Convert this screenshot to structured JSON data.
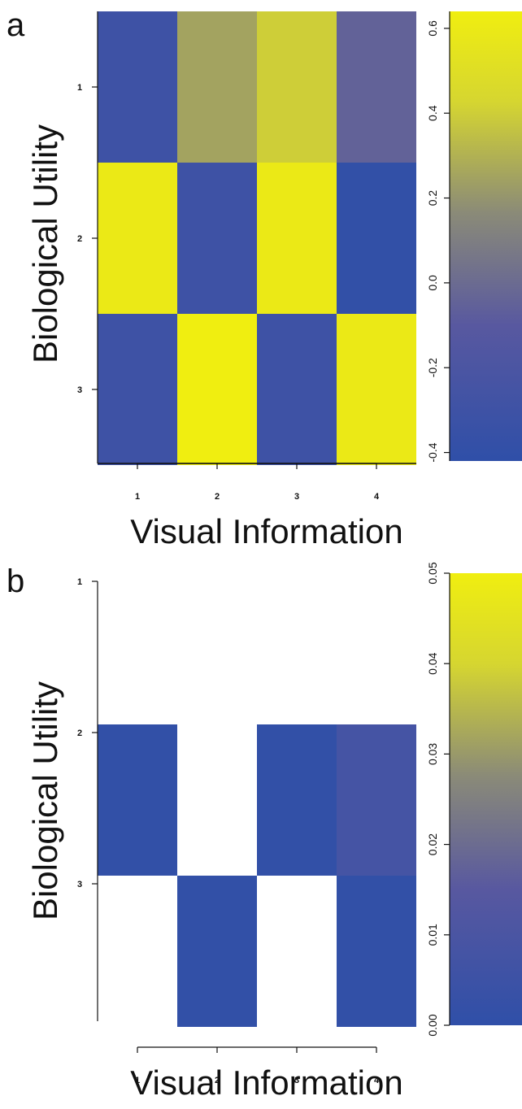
{
  "colors": {
    "low": "#2f4fa8",
    "mid": "#8a8a78",
    "high": "#f0ee10",
    "axis": "#111111"
  },
  "chart_data": [
    {
      "panel_label": "a",
      "type": "heatmap",
      "xlabel": "Visual Information",
      "ylabel": "Biological Utility",
      "x_ticks": [
        "1",
        "2",
        "3",
        "4"
      ],
      "y_ticks": [
        "1",
        "2",
        "3"
      ],
      "values": [
        [
          -0.3,
          0.25,
          0.4,
          -0.05
        ],
        [
          0.6,
          -0.3,
          0.6,
          -0.4
        ],
        [
          -0.3,
          0.65,
          -0.3,
          0.6
        ]
      ],
      "color_range": [
        -0.42,
        0.64
      ],
      "colorbar_ticks": [
        "0.6",
        "0.4",
        "0.2",
        "0.0",
        "-0.2",
        "-0.4"
      ],
      "colorbar_values": [
        0.6,
        0.4,
        0.2,
        0.0,
        -0.2,
        -0.4
      ]
    },
    {
      "panel_label": "b",
      "type": "heatmap",
      "xlabel": "Visual Information",
      "ylabel": "Biological Utility",
      "x_ticks": [
        "1",
        "2",
        "3",
        "4"
      ],
      "y_ticks": [
        "1",
        "2",
        "3"
      ],
      "values": [
        [
          null,
          null,
          null,
          null
        ],
        [
          0.001,
          null,
          0.001,
          0.008
        ],
        [
          null,
          0.001,
          null,
          0.001
        ]
      ],
      "color_range": [
        0.0,
        0.05
      ],
      "colorbar_ticks": [
        "0.05",
        "0.04",
        "0.03",
        "0.02",
        "0.01",
        "0.00"
      ],
      "colorbar_values": [
        0.05,
        0.04,
        0.03,
        0.02,
        0.01,
        0.0
      ]
    }
  ]
}
